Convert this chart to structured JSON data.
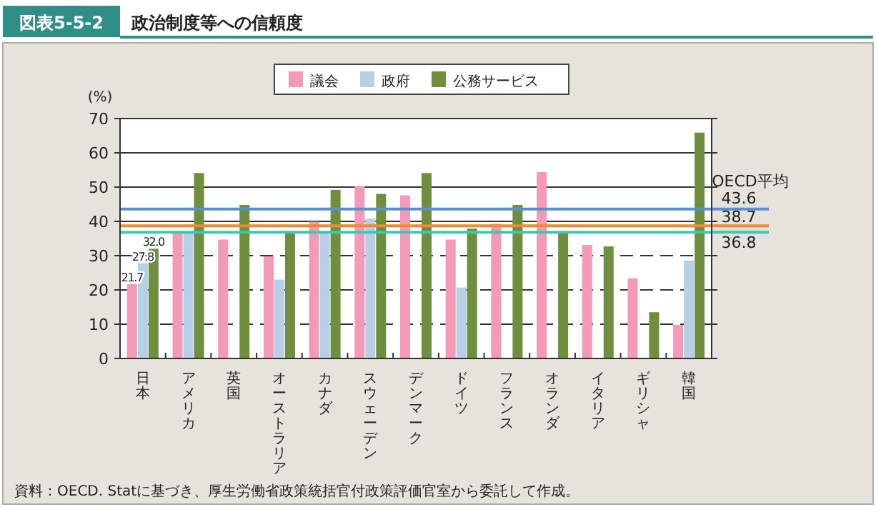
{
  "chart_data": {
    "type": "bar",
    "title": "政治制度等への信頼度",
    "subtitle": "図表5-5-2",
    "ylabel": "(%)",
    "categories": [
      "日本",
      "アメリカ",
      "英国",
      "オーストラリア",
      "カナダ",
      "スウェーデン",
      "デンマーク",
      "ドイツ",
      "フランス",
      "オランダ",
      "イタリア",
      "ギリシャ",
      "韓国"
    ],
    "series": [
      {
        "name": "議会",
        "color": "#f29ab8",
        "values": [
          21.7,
          37.2,
          34.7,
          29.8,
          39.9,
          50.2,
          47.6,
          34.7,
          39.3,
          54.4,
          33.1,
          23.4,
          9.8
        ],
        "value_labels": [
          "21.7",
          null,
          null,
          null,
          null,
          null,
          null,
          null,
          null,
          null,
          null,
          null,
          null
        ]
      },
      {
        "name": "政府",
        "color": "#b8cfe8",
        "values": [
          27.8,
          37.0,
          null,
          23.0,
          37.0,
          40.8,
          null,
          20.7,
          null,
          null,
          null,
          null,
          28.6
        ],
        "value_labels": [
          "27.8",
          null,
          null,
          null,
          null,
          null,
          null,
          null,
          null,
          null,
          null,
          null,
          null
        ]
      },
      {
        "name": "公務サービス",
        "color": "#6f8f3e",
        "values": [
          32.0,
          54.1,
          44.8,
          36.9,
          49.2,
          48.0,
          54.1,
          37.9,
          44.8,
          37.0,
          32.7,
          13.5,
          65.9
        ],
        "value_labels": [
          "32.0",
          null,
          null,
          null,
          null,
          null,
          null,
          null,
          null,
          null,
          null,
          null,
          null
        ]
      }
    ],
    "ylim": [
      0,
      70
    ],
    "yticks": [
      0,
      10,
      20,
      30,
      40,
      50,
      60,
      70
    ],
    "grid": "y",
    "legend": "top",
    "ref_lines": [
      {
        "axis": "y",
        "value": 43.6,
        "label": "43.6",
        "color": "#5b8fd0"
      },
      {
        "axis": "y",
        "value": 38.7,
        "label": "38.7",
        "color": "#f08a30"
      },
      {
        "axis": "y",
        "value": 36.8,
        "label": "36.8",
        "color": "#3cc8b4"
      }
    ],
    "annotations": [
      "OECD平均",
      "資料：OECD. Statに基づき、厚生労働省政策統括官付政策評価官室から委託して作成。"
    ]
  }
}
